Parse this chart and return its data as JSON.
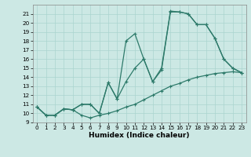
{
  "title": "",
  "xlabel": "Humidex (Indice chaleur)",
  "bg_color": "#cce8e4",
  "grid_color": "#aad4cf",
  "line_color": "#2d7a6a",
  "xlim": [
    -0.5,
    23.5
  ],
  "ylim": [
    9,
    22
  ],
  "xticks": [
    0,
    1,
    2,
    3,
    4,
    5,
    6,
    7,
    8,
    9,
    10,
    11,
    12,
    13,
    14,
    15,
    16,
    17,
    18,
    19,
    20,
    21,
    22,
    23
  ],
  "yticks": [
    9,
    10,
    11,
    12,
    13,
    14,
    15,
    16,
    17,
    18,
    19,
    20,
    21
  ],
  "line1_x": [
    0,
    1,
    2,
    3,
    4,
    5,
    6,
    7,
    8,
    9,
    10,
    11,
    12,
    13,
    14,
    15,
    16,
    17,
    18,
    19,
    20,
    21,
    22,
    23
  ],
  "line1_y": [
    10.7,
    9.8,
    9.8,
    10.5,
    10.4,
    9.8,
    9.5,
    9.8,
    10.0,
    10.3,
    10.7,
    11.0,
    11.5,
    12.0,
    12.5,
    13.0,
    13.3,
    13.7,
    14.0,
    14.2,
    14.4,
    14.5,
    14.6,
    14.5
  ],
  "line2_x": [
    0,
    1,
    2,
    3,
    4,
    5,
    6,
    7,
    8,
    9,
    10,
    11,
    12,
    13,
    14,
    15,
    16,
    17,
    18,
    19,
    20,
    21,
    22,
    23
  ],
  "line2_y": [
    10.7,
    9.8,
    9.8,
    10.5,
    10.4,
    11.0,
    11.0,
    10.0,
    13.4,
    11.6,
    13.5,
    15.0,
    16.0,
    13.5,
    14.8,
    21.2,
    21.2,
    21.0,
    19.8,
    19.8,
    18.3,
    16.0,
    15.0,
    14.5
  ],
  "line3_x": [
    0,
    1,
    2,
    3,
    4,
    5,
    6,
    7,
    8,
    9,
    10,
    11,
    12,
    13,
    14,
    15,
    16,
    17,
    18,
    19,
    20,
    21,
    22,
    23
  ],
  "line3_y": [
    10.7,
    9.8,
    9.8,
    10.5,
    10.4,
    11.0,
    11.0,
    10.0,
    13.4,
    11.6,
    18.0,
    18.8,
    16.0,
    13.5,
    15.0,
    21.3,
    21.2,
    21.0,
    19.8,
    19.8,
    18.3,
    16.0,
    15.0,
    14.5
  ],
  "xlabel_fontsize": 6.5,
  "tick_fontsize": 5.2
}
